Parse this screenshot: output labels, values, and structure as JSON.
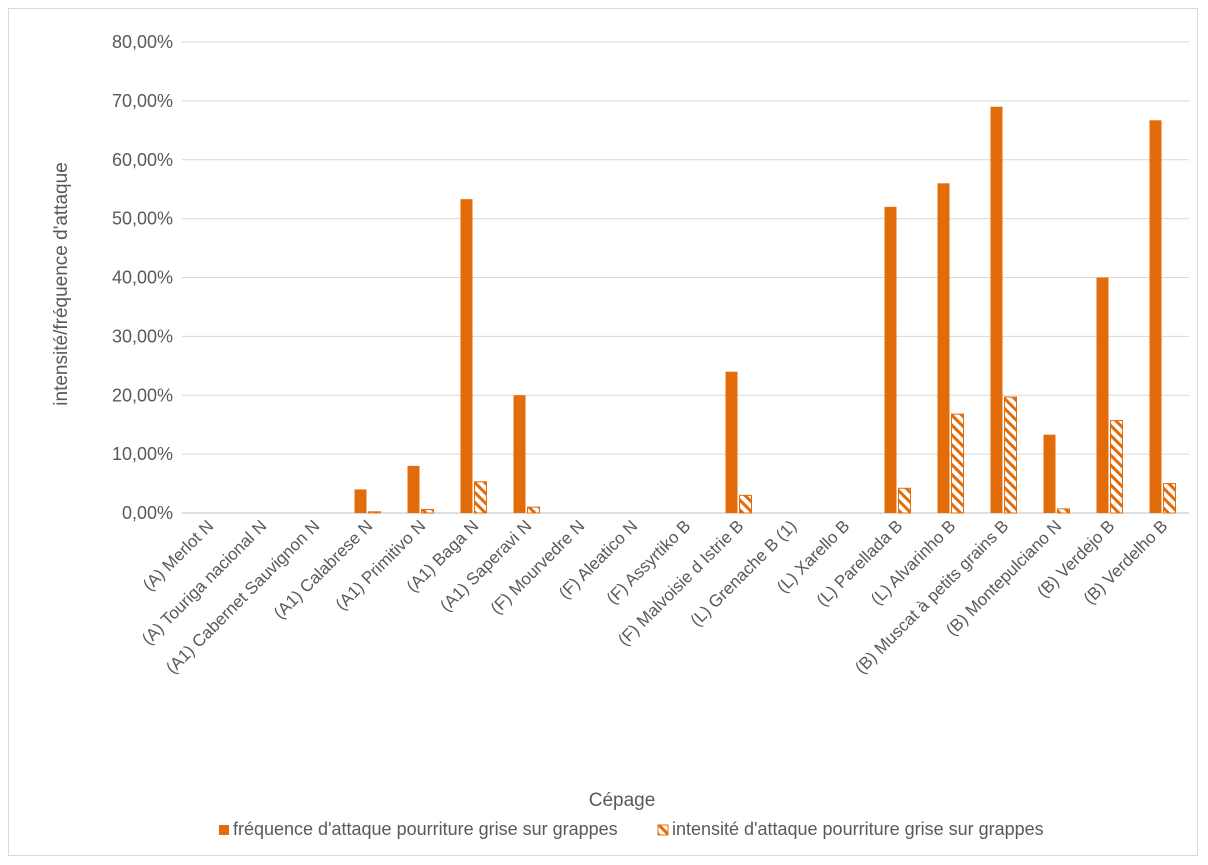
{
  "chart_data": {
    "type": "bar",
    "title": "",
    "xlabel": "Cépage",
    "ylabel": "intensité/fréquence d'attaque",
    "ylim": [
      0,
      0.8
    ],
    "y_ticks": [
      "0,00%",
      "10,00%",
      "20,00%",
      "30,00%",
      "40,00%",
      "50,00%",
      "60,00%",
      "70,00%",
      "80,00%"
    ],
    "grid": true,
    "legend_position": "bottom",
    "categories": [
      "(A) Merlot N",
      "(A) Touriga nacional N",
      "(A1) Cabernet Sauvignon N",
      "(A1) Calabrese N",
      "(A1) Primitivo N",
      "(A1) Baga N",
      "(A1) Saperavi N",
      "(F) Mourvedre N",
      "(F) Aleatico N",
      "(F) Assyrtiko B",
      "(F) Malvoisie d Istrie B",
      "(L) Grenache B (1)",
      "(L) Xarello B",
      "(L) Parellada B",
      "(L) Alvarinho B",
      "(B) Muscat à petits grains B",
      "(B) Montepulciano N",
      "(B) Verdejo B",
      "(B) Verdelho B"
    ],
    "series": [
      {
        "name": "fréquence d'attaque pourriture grise sur grappes",
        "color": "#E36C0A",
        "style": "solid",
        "values": [
          0,
          0,
          0,
          0.04,
          0.08,
          0.533,
          0.2,
          0,
          0,
          0,
          0.24,
          0,
          0,
          0.52,
          0.56,
          0.69,
          0.133,
          0.4,
          0.667
        ]
      },
      {
        "name": "intensité d'attaque pourriture grise sur grappes",
        "color": "#E36C0A",
        "style": "hatched",
        "values": [
          0,
          0,
          0,
          0.002,
          0.006,
          0.053,
          0.01,
          0,
          0,
          0,
          0.03,
          0,
          0,
          0.042,
          0.168,
          0.197,
          0.007,
          0.157,
          0.05
        ]
      }
    ]
  }
}
